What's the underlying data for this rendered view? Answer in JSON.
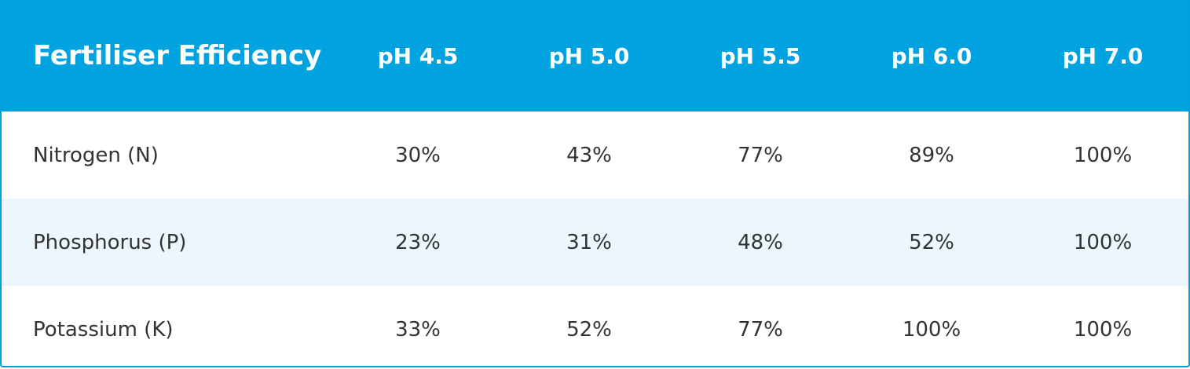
{
  "table": {
    "header": [
      "Fertiliser Efficiency",
      "pH 4.5",
      "pH 5.0",
      "pH 5.5",
      "pH 6.0",
      "pH 7.0"
    ],
    "rows": [
      [
        "Nitrogen (N)",
        "30%",
        "43%",
        "77%",
        "89%",
        "100%"
      ],
      [
        "Phosphorus (P)",
        "23%",
        "31%",
        "48%",
        "52%",
        "100%"
      ],
      [
        "Potassium (K)",
        "33%",
        "52%",
        "77%",
        "100%",
        "100%"
      ]
    ]
  }
}
